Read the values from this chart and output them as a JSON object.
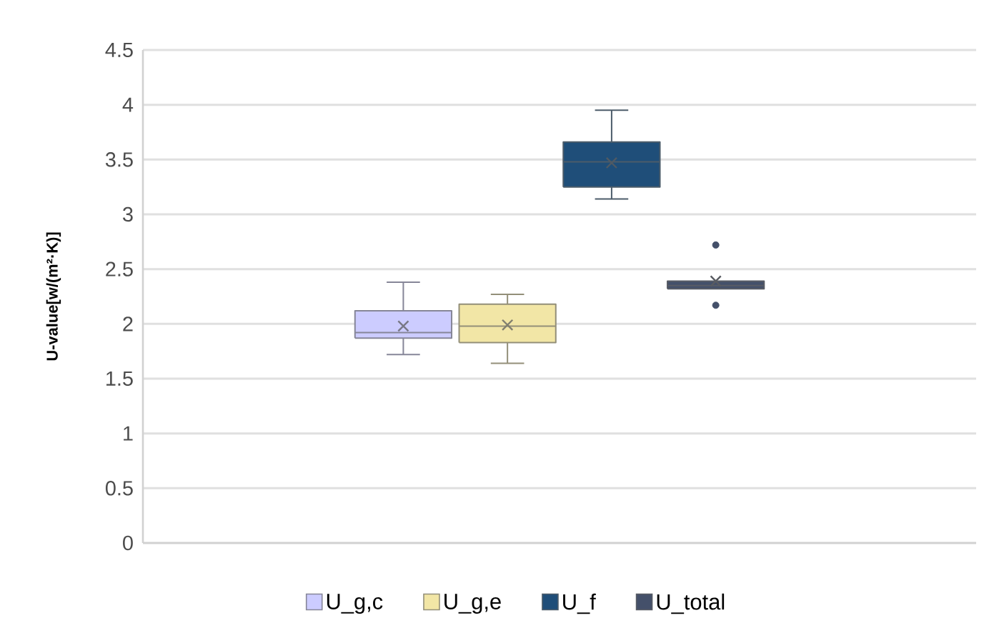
{
  "chart_data": {
    "type": "box",
    "ylabel": "U-value[w/(m²·K)]",
    "categories": [
      null
    ],
    "ylim": [
      0,
      4.5
    ],
    "yticks": [
      0,
      0.5,
      1,
      1.5,
      2,
      2.5,
      3,
      3.5,
      4,
      4.5
    ],
    "grid": "y",
    "legend": "bottom",
    "series": [
      {
        "name": "U_g,c",
        "color": "#ccccff",
        "boxes": [
          {
            "low": 1.72,
            "q1": 1.87,
            "median": 1.92,
            "q3": 2.12,
            "high": 2.38,
            "mean": 1.98
          }
        ]
      },
      {
        "name": "U_g,e",
        "color": "#f2e6a6",
        "boxes": [
          {
            "low": 1.64,
            "q1": 1.83,
            "median": 1.98,
            "q3": 2.18,
            "high": 2.27,
            "mean": 1.99
          }
        ]
      },
      {
        "name": "U_f",
        "color": "#1f4e79",
        "boxes": [
          {
            "low": 3.14,
            "q1": 3.25,
            "median": 3.48,
            "q3": 3.66,
            "high": 3.95,
            "mean": 3.47
          }
        ]
      },
      {
        "name": "U_total",
        "color": "#44506a",
        "boxes": [
          {
            "low": 2.32,
            "q1": 2.32,
            "median": 2.35,
            "q3": 2.39,
            "high": 2.39,
            "mean": 2.39,
            "outliers": [
              2.72,
              2.17
            ]
          }
        ]
      }
    ]
  }
}
